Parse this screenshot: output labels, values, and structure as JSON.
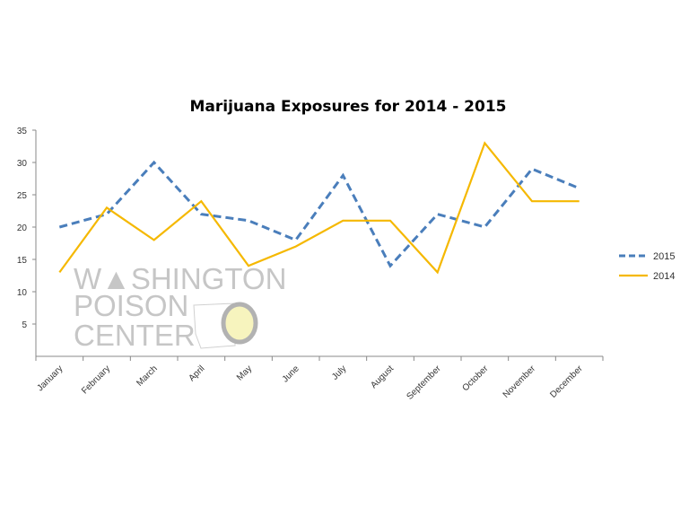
{
  "chart_data": {
    "type": "line",
    "title": "Marijuana Exposures for 2014 - 2015",
    "xlabel": "",
    "ylabel": "",
    "categories": [
      "January",
      "February",
      "March",
      "April",
      "May",
      "June",
      "July",
      "August",
      "September",
      "October",
      "November",
      "December"
    ],
    "ylim": [
      0,
      35
    ],
    "yticks": [
      5,
      10,
      15,
      20,
      25,
      30,
      35
    ],
    "grid": false,
    "legend_position": "right",
    "series": [
      {
        "name": "2015",
        "color": "#4a7ebb",
        "style": "dashed",
        "values": [
          20,
          22,
          30,
          22,
          21,
          18,
          28,
          14,
          22,
          20,
          29,
          26
        ]
      },
      {
        "name": "2014",
        "color": "#f5b800",
        "style": "solid",
        "values": [
          13,
          23,
          18,
          24,
          14,
          17,
          21,
          21,
          13,
          33,
          24,
          24
        ]
      }
    ]
  },
  "watermark": {
    "lines": [
      "WASHINGTON",
      "POISON",
      "CENTER"
    ]
  }
}
